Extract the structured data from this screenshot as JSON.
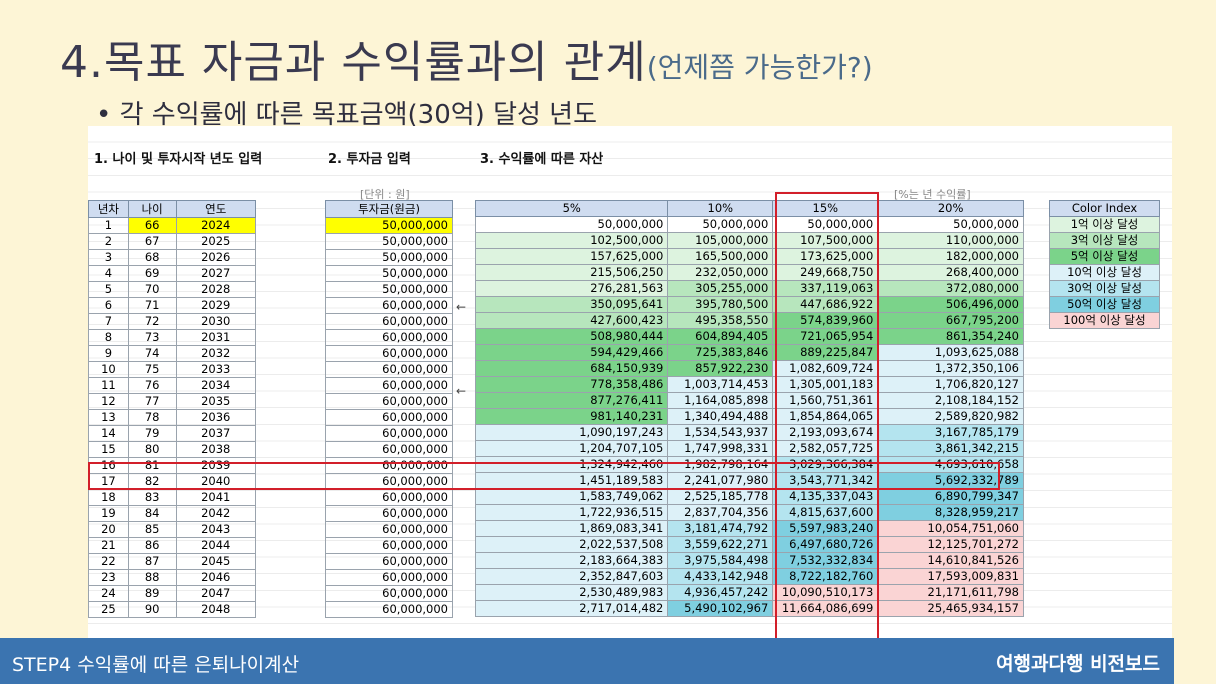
{
  "title": {
    "main": "4.목표 자금과 수익률과의 관계",
    "sub": "(언제쯤 가능한가?)"
  },
  "bullet": "• 각 수익률에 따른 목표금액(30억) 달성 년도",
  "sheet": {
    "h1": "1. 나이 및 투자시작 년도 입력",
    "h2": "2. 투자금 입력",
    "h3": "3. 수익률에 따른 자산",
    "unit": "[단위 : 원]",
    "rate_note": "[%는 년 수익률]",
    "arrow": "←",
    "cols": {
      "year_no": "년차",
      "age": "나이",
      "year": "연도",
      "invest": "투자금(원금)",
      "r5": "5%",
      "r10": "10%",
      "r15": "15%",
      "r20": "20%"
    },
    "rows": [
      [
        "1",
        "66",
        "2024",
        "50,000,000",
        "50,000,000",
        "50,000,000",
        "50,000,000",
        "50,000,000"
      ],
      [
        "2",
        "67",
        "2025",
        "50,000,000",
        "102,500,000",
        "105,000,000",
        "107,500,000",
        "110,000,000"
      ],
      [
        "3",
        "68",
        "2026",
        "50,000,000",
        "157,625,000",
        "165,500,000",
        "173,625,000",
        "182,000,000"
      ],
      [
        "4",
        "69",
        "2027",
        "50,000,000",
        "215,506,250",
        "232,050,000",
        "249,668,750",
        "268,400,000"
      ],
      [
        "5",
        "70",
        "2028",
        "50,000,000",
        "276,281,563",
        "305,255,000",
        "337,119,063",
        "372,080,000"
      ],
      [
        "6",
        "71",
        "2029",
        "60,000,000",
        "350,095,641",
        "395,780,500",
        "447,686,922",
        "506,496,000"
      ],
      [
        "7",
        "72",
        "2030",
        "60,000,000",
        "427,600,423",
        "495,358,550",
        "574,839,960",
        "667,795,200"
      ],
      [
        "8",
        "73",
        "2031",
        "60,000,000",
        "508,980,444",
        "604,894,405",
        "721,065,954",
        "861,354,240"
      ],
      [
        "9",
        "74",
        "2032",
        "60,000,000",
        "594,429,466",
        "725,383,846",
        "889,225,847",
        "1,093,625,088"
      ],
      [
        "10",
        "75",
        "2033",
        "60,000,000",
        "684,150,939",
        "857,922,230",
        "1,082,609,724",
        "1,372,350,106"
      ],
      [
        "11",
        "76",
        "2034",
        "60,000,000",
        "778,358,486",
        "1,003,714,453",
        "1,305,001,183",
        "1,706,820,127"
      ],
      [
        "12",
        "77",
        "2035",
        "60,000,000",
        "877,276,411",
        "1,164,085,898",
        "1,560,751,361",
        "2,108,184,152"
      ],
      [
        "13",
        "78",
        "2036",
        "60,000,000",
        "981,140,231",
        "1,340,494,488",
        "1,854,864,065",
        "2,589,820,982"
      ],
      [
        "14",
        "79",
        "2037",
        "60,000,000",
        "1,090,197,243",
        "1,534,543,937",
        "2,193,093,674",
        "3,167,785,179"
      ],
      [
        "15",
        "80",
        "2038",
        "60,000,000",
        "1,204,707,105",
        "1,747,998,331",
        "2,582,057,725",
        "3,861,342,215"
      ],
      [
        "16",
        "81",
        "2039",
        "60,000,000",
        "1,324,942,460",
        "1,982,798,164",
        "3,029,366,384",
        "4,693,610,658"
      ],
      [
        "17",
        "82",
        "2040",
        "60,000,000",
        "1,451,189,583",
        "2,241,077,980",
        "3,543,771,342",
        "5,692,332,789"
      ],
      [
        "18",
        "83",
        "2041",
        "60,000,000",
        "1,583,749,062",
        "2,525,185,778",
        "4,135,337,043",
        "6,890,799,347"
      ],
      [
        "19",
        "84",
        "2042",
        "60,000,000",
        "1,722,936,515",
        "2,837,704,356",
        "4,815,637,600",
        "8,328,959,217"
      ],
      [
        "20",
        "85",
        "2043",
        "60,000,000",
        "1,869,083,341",
        "3,181,474,792",
        "5,597,983,240",
        "10,054,751,060"
      ],
      [
        "21",
        "86",
        "2044",
        "60,000,000",
        "2,022,537,508",
        "3,559,622,271",
        "6,497,680,726",
        "12,125,701,272"
      ],
      [
        "22",
        "87",
        "2045",
        "60,000,000",
        "2,183,664,383",
        "3,975,584,498",
        "7,532,332,834",
        "14,610,841,526"
      ],
      [
        "23",
        "88",
        "2046",
        "60,000,000",
        "2,352,847,603",
        "4,433,142,948",
        "8,722,182,760",
        "17,593,009,831"
      ],
      [
        "24",
        "89",
        "2047",
        "60,000,000",
        "2,530,489,983",
        "4,936,457,242",
        "10,090,510,173",
        "21,171,611,798"
      ],
      [
        "25",
        "90",
        "2048",
        "60,000,000",
        "2,717,014,482",
        "5,490,102,967",
        "11,664,086,699",
        "25,465,934,157"
      ]
    ],
    "colors": {
      "white": "#ffffff",
      "g1": "#ddf3df",
      "g3": "#b7e6bd",
      "g5": "#7bd38a",
      "b10": "#ddf1f8",
      "b30": "#b4e4ef",
      "b50": "#7fcfe0",
      "p100": "#fad4d4",
      "yellow": "#ffff00"
    },
    "legend": {
      "title": "Color Index",
      "items": [
        {
          "label": "1억 이상 달성",
          "color": "#ddf3df"
        },
        {
          "label": "3억 이상 달성",
          "color": "#b7e6bd"
        },
        {
          "label": "5억 이상 달성",
          "color": "#7bd38a"
        },
        {
          "label": "10억 이상 달성",
          "color": "#ddf1f8"
        },
        {
          "label": "30억 이상 달성",
          "color": "#b4e4ef"
        },
        {
          "label": "50억 이상 달성",
          "color": "#7fcfe0"
        },
        {
          "label": "100억 이상 달성",
          "color": "#fad4d4"
        }
      ]
    }
  },
  "footer": {
    "left": "STEP4 수익률에 따른 은퇴나이계산",
    "right": "여행과다행 비전보드"
  }
}
